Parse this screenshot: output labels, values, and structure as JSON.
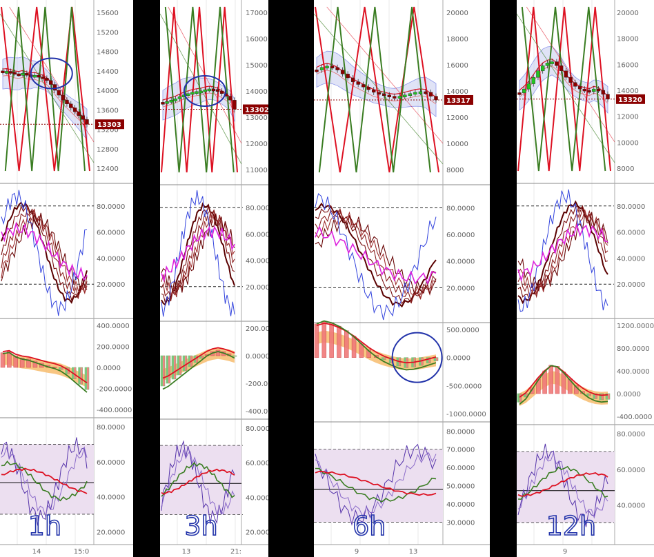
{
  "colors": {
    "bg": "#ffffff",
    "grid": "#e9e9e9",
    "bull": "#22c522",
    "bear": "#8b0000",
    "red": "#dd1122",
    "green": "#3a7d22",
    "magenta": "#dd22dd",
    "blue": "#3344dd",
    "purple": "#5533aa",
    "annot": "#2233aa",
    "band": "#c8cdf0",
    "orange": "#f5b35a",
    "zone": "#ecdff0"
  },
  "chart_data": [
    {
      "type": "candlestick",
      "timeframe_label": "1h",
      "price": {
        "ticks": [
          "12400",
          "12800",
          "13200",
          "13600",
          "14000",
          "14400",
          "14800",
          "15200",
          "15600"
        ],
        "last_price": "13303",
        "close_series": [
          14380,
          14390,
          14370,
          14340,
          14330,
          14350,
          14320,
          14300,
          14310,
          14280,
          14250,
          14200,
          14120,
          14000,
          13900,
          13800,
          13720,
          13640,
          13560,
          13480,
          13400,
          13303
        ]
      },
      "stoch": {
        "ticks": [
          "20.0000",
          "40.0000",
          "60.0000",
          "80.0000"
        ],
        "levels": [
          80,
          20
        ]
      },
      "macd": {
        "ticks": [
          "-400.0000",
          "-200.0000",
          "0.0000",
          "200.0000",
          "400.0000"
        ],
        "hist": [
          140,
          150,
          110,
          90,
          80,
          60,
          40,
          20,
          5,
          -20,
          -60,
          -110,
          -160,
          -210
        ]
      },
      "rsi": {
        "ticks": [
          "20.0000",
          "40.0000",
          "60.0000",
          "80.0000"
        ],
        "levels": [
          70,
          30
        ]
      },
      "x_ticks": [
        "14",
        "15:0"
      ]
    },
    {
      "type": "candlestick",
      "timeframe_label": "3h",
      "price": {
        "ticks": [
          "11000",
          "12000",
          "13000",
          "14000",
          "15000",
          "16000",
          "17000"
        ],
        "last_price": "13302",
        "close_series": [
          13550,
          13600,
          13650,
          13700,
          13780,
          13850,
          13900,
          13950,
          13980,
          14000,
          14050,
          14080,
          14060,
          14000,
          13900,
          13800,
          13650,
          13302
        ]
      },
      "stoch": {
        "ticks": [
          "20.0000",
          "40.0000",
          "60.0000",
          "80.0000"
        ],
        "levels": [
          80,
          20
        ]
      },
      "macd": {
        "ticks": [
          "-400.0000",
          "-200.0000",
          "0.0000",
          "200.0000"
        ],
        "hist": [
          -220,
          -200,
          -170,
          -140,
          -110,
          -80,
          -50,
          -20,
          10,
          30,
          40,
          30,
          15,
          -5
        ]
      },
      "rsi": {
        "ticks": [
          "20.0000",
          "40.0000",
          "60.0000",
          "80.0000"
        ],
        "levels": [
          70,
          30
        ]
      },
      "x_ticks": [
        "13",
        "21:"
      ]
    },
    {
      "type": "candlestick",
      "timeframe_label": "6h",
      "price": {
        "ticks": [
          "8000",
          "10000",
          "12000",
          "14000",
          "16000",
          "18000",
          "20000"
        ],
        "last_price": "13317",
        "close_series": [
          15600,
          15800,
          15900,
          15800,
          15600,
          15300,
          15000,
          14700,
          14500,
          14300,
          14100,
          13900,
          13800,
          13700,
          13600,
          13550,
          13600,
          13700,
          13800,
          13900,
          13950,
          13900,
          13600,
          13317
        ]
      },
      "stoch": {
        "ticks": [
          "20.0000",
          "40.0000",
          "60.0000",
          "80.0000"
        ],
        "levels": [
          80,
          20
        ]
      },
      "macd": {
        "ticks": [
          "-1000.0000",
          "-500.0000",
          "0.0000",
          "500.0000"
        ],
        "hist": [
          600,
          650,
          620,
          560,
          480,
          380,
          260,
          140,
          40,
          -40,
          -100,
          -150,
          -180,
          -170,
          -140,
          -100,
          -60
        ]
      },
      "rsi": {
        "ticks": [
          "30.0000",
          "40.0000",
          "50.0000",
          "60.0000",
          "70.0000",
          "80.0000"
        ],
        "levels": [
          70,
          30
        ]
      },
      "x_ticks": [
        "9",
        "13"
      ]
    },
    {
      "type": "candlestick",
      "timeframe_label": "12h",
      "price": {
        "ticks": [
          "8000",
          "10000",
          "12000",
          "14000",
          "16000",
          "18000",
          "20000"
        ],
        "last_price": "13320",
        "close_series": [
          13800,
          14100,
          14500,
          15000,
          15500,
          15900,
          16100,
          16200,
          15900,
          15500,
          15000,
          14600,
          14300,
          14100,
          14000,
          13900,
          14100,
          14000,
          13700,
          13320
        ]
      },
      "stoch": {
        "ticks": [
          "20.0000",
          "40.0000",
          "60.0000",
          "80.0000"
        ],
        "levels": [
          80,
          20
        ]
      },
      "macd": {
        "ticks": [
          "-400.0000",
          "0.0000",
          "400.0000",
          "800.0000",
          "1200.0000"
        ],
        "hist": [
          -150,
          -60,
          100,
          260,
          400,
          500,
          480,
          380,
          260,
          140,
          40,
          -40,
          -90,
          -110,
          -100
        ]
      },
      "rsi": {
        "ticks": [
          "40.0000",
          "60.0000",
          "80.0000"
        ],
        "levels": [
          70,
          30
        ]
      },
      "x_ticks": [
        "9"
      ]
    }
  ]
}
